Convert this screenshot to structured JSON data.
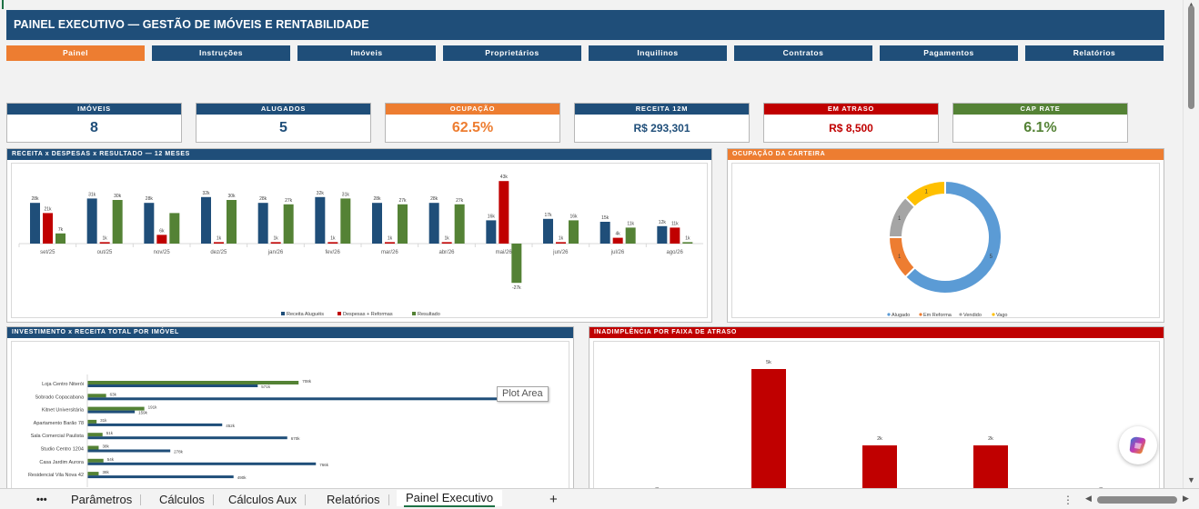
{
  "title": "PAINEL EXECUTIVO — GESTÃO DE IMÓVEIS E RENTABILIDADE",
  "nav": [
    "Painel",
    "Instruções",
    "Imóveis",
    "Proprietários",
    "Inquilinos",
    "Contratos",
    "Pagamentos",
    "Relatórios"
  ],
  "kpis": [
    {
      "label": "IMÓVEIS",
      "value": "8",
      "color": "#1f4e79"
    },
    {
      "label": "ALUGADOS",
      "value": "5",
      "color": "#1f4e79"
    },
    {
      "label": "OCUPAÇÃO",
      "value": "62.5%",
      "color": "#ed7d31"
    },
    {
      "label": "RECEITA 12M",
      "value": "R$ 293,301",
      "color": "#1f4e79"
    },
    {
      "label": "EM ATRASO",
      "value": "R$ 8,500",
      "color": "#c00000"
    },
    {
      "label": "CAP RATE",
      "value": "6.1%",
      "color": "#548235"
    }
  ],
  "panels": {
    "revenue": "RECEITA x DESPESAS x RESULTADO — 12 MESES",
    "occupancy": "OCUPAÇÃO DA CARTEIRA",
    "investment": "INVESTIMENTO x RECEITA TOTAL POR IMÓVEL",
    "delinquency": "INADIMPLÊNCIA POR FAIXA DE ATRASO"
  },
  "tooltip": "Plot Area",
  "chart_data": [
    {
      "type": "bar",
      "title": "RECEITA x DESPESAS x RESULTADO — 12 MESES",
      "categories": [
        "set/25",
        "out/25",
        "nov/25",
        "dez/25",
        "jan/26",
        "fev/26",
        "mar/26",
        "abr/26",
        "mai/26",
        "jun/26",
        "jul/26",
        "ago/26"
      ],
      "series": [
        {
          "name": "Receita Aluguéis",
          "color": "#1f4e79",
          "values": [
            28,
            31,
            28,
            32,
            28,
            32,
            28,
            28,
            16,
            17,
            15,
            12
          ],
          "labels": [
            "28k",
            "31k",
            "28k",
            "32k",
            "28k",
            "32k",
            "28k",
            "28k",
            "16k",
            "17k",
            "15k",
            "12k"
          ]
        },
        {
          "name": "Despesas + Reformas",
          "color": "#c00000",
          "values": [
            21,
            1,
            6,
            1,
            1,
            1,
            1,
            1,
            43,
            1,
            4,
            11
          ],
          "labels": [
            "21k",
            "1k",
            "6k",
            "1k",
            "1k",
            "1k",
            "1k",
            "1k",
            "43k",
            "1k",
            "4k",
            "11k"
          ]
        },
        {
          "name": "Resultado",
          "color": "#548235",
          "values": [
            7,
            30,
            21,
            30,
            27,
            31,
            27,
            27,
            -27,
            16,
            11,
            1
          ],
          "labels": [
            "7k",
            "30k",
            "",
            "30k",
            "27k",
            "31k",
            "27k",
            "27k",
            "-27k",
            "16k",
            "11k",
            "1k"
          ]
        }
      ],
      "legend": "bottom"
    },
    {
      "type": "pie",
      "title": "OCUPAÇÃO DA CARTEIRA",
      "categories": [
        "Alugado",
        "Em Reforma",
        "Vendido",
        "Vago"
      ],
      "values": [
        5,
        1,
        1,
        1
      ],
      "colors": [
        "#5b9bd5",
        "#ed7d31",
        "#a5a5a5",
        "#ffc000"
      ],
      "legend": "bottom"
    },
    {
      "type": "bar",
      "title": "INVESTIMENTO x RECEITA TOTAL POR IMÓVEL",
      "categories": [
        "Loja Centro Niterói",
        "Sobrado Copacabana",
        "Kitnet Universitária",
        "Apartamento Barão 78",
        "Sala Comercial Paulista",
        "Studio Centro 1204",
        "Casa Jardim Aurora",
        "Residencial Vila Nova 42"
      ],
      "series": [
        {
          "name": "green",
          "color": "#548235",
          "values": [
            708,
            63,
            191,
            31,
            51,
            38,
            54,
            38
          ],
          "labels": [
            "708k",
            "63k",
            "191k",
            "31k",
            "51k",
            "38k",
            "54k",
            "38k"
          ]
        },
        {
          "name": "blue",
          "color": "#1f4e79",
          "values": [
            571,
            1400,
            159,
            452,
            670,
            278,
            766,
            490
          ],
          "labels": [
            "571k",
            "",
            "159k",
            "452k",
            "670k",
            "278k",
            "766k",
            "490k"
          ]
        }
      ]
    },
    {
      "type": "bar",
      "title": "INADIMPLÊNCIA POR FAIXA DE ATRASO",
      "values": [
        0,
        5,
        2,
        2,
        0
      ],
      "labels": [
        "0k",
        "5k",
        "2k",
        "2k",
        "0k"
      ],
      "color": "#c00000"
    }
  ],
  "tabs": [
    "•••",
    "Parâmetros",
    "Cálculos",
    "Cálculos Aux",
    "Relatórios",
    "Painel Executivo",
    "+"
  ]
}
